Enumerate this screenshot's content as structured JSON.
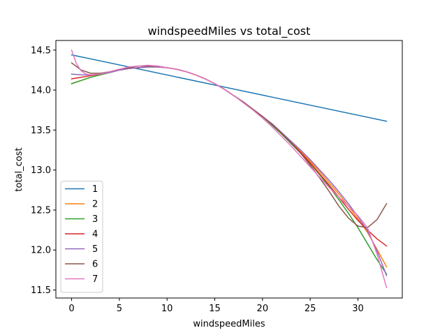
{
  "chart_data": {
    "type": "line",
    "title": "windspeedMiles vs total_cost",
    "xlabel": "windspeedMiles",
    "ylabel": "total_cost",
    "xlim": [
      -1.65,
      34.65
    ],
    "ylim": [
      11.4,
      14.62
    ],
    "xticks": [
      0,
      5,
      10,
      15,
      20,
      25,
      30
    ],
    "yticks": [
      11.5,
      12.0,
      12.5,
      13.0,
      13.5,
      14.0,
      14.5
    ],
    "ytick_labels": [
      "11.5",
      "12.0",
      "12.5",
      "13.0",
      "13.5",
      "14.0",
      "14.5"
    ],
    "grid": false,
    "legend_position": "lower-left",
    "series": [
      {
        "name": "1",
        "color": "#1f77b4",
        "x": [
          0,
          33
        ],
        "y": [
          14.44,
          13.61
        ]
      },
      {
        "name": "2",
        "color": "#ff7f0e",
        "x": [
          0,
          1,
          2,
          3,
          4,
          5,
          6,
          7,
          8,
          9,
          10,
          11,
          12,
          13,
          14,
          15,
          16,
          17,
          18,
          19,
          20,
          21,
          22,
          23,
          24,
          25,
          26,
          27,
          28,
          29,
          30,
          31,
          32,
          33
        ],
        "y": [
          14.08,
          14.12,
          14.16,
          14.19,
          14.22,
          14.25,
          14.27,
          14.28,
          14.29,
          14.29,
          14.28,
          14.26,
          14.23,
          14.19,
          14.14,
          14.08,
          14.01,
          13.93,
          13.85,
          13.76,
          13.67,
          13.57,
          13.46,
          13.35,
          13.23,
          13.11,
          12.98,
          12.84,
          12.7,
          12.55,
          12.39,
          12.22,
          12.01,
          11.79
        ]
      },
      {
        "name": "3",
        "color": "#2ca02c",
        "x": [
          0,
          1,
          2,
          3,
          4,
          5,
          6,
          7,
          8,
          9,
          10,
          11,
          12,
          13,
          14,
          15,
          16,
          17,
          18,
          19,
          20,
          21,
          22,
          23,
          24,
          25,
          26,
          27,
          28,
          29,
          30,
          31,
          32,
          33
        ],
        "y": [
          14.08,
          14.12,
          14.16,
          14.19,
          14.22,
          14.25,
          14.27,
          14.28,
          14.29,
          14.29,
          14.28,
          14.26,
          14.23,
          14.19,
          14.14,
          14.08,
          14.01,
          13.93,
          13.85,
          13.76,
          13.67,
          13.56,
          13.45,
          13.33,
          13.21,
          13.08,
          12.94,
          12.79,
          12.63,
          12.46,
          12.28,
          12.08,
          11.88,
          11.7
        ]
      },
      {
        "name": "4",
        "color": "#d62728",
        "x": [
          0,
          1,
          2,
          3,
          4,
          5,
          6,
          7,
          8,
          9,
          10,
          11,
          12,
          13,
          14,
          15,
          16,
          17,
          18,
          19,
          20,
          21,
          22,
          23,
          24,
          25,
          26,
          27,
          28,
          29,
          30,
          31,
          32,
          33
        ],
        "y": [
          14.14,
          14.16,
          14.18,
          14.2,
          14.23,
          14.25,
          14.27,
          14.28,
          14.29,
          14.29,
          14.28,
          14.26,
          14.23,
          14.19,
          14.14,
          14.08,
          14.01,
          13.93,
          13.85,
          13.76,
          13.67,
          13.57,
          13.46,
          13.34,
          13.22,
          13.09,
          12.95,
          12.81,
          12.66,
          12.51,
          12.37,
          12.25,
          12.14,
          12.05
        ]
      },
      {
        "name": "5",
        "color": "#9467bd",
        "x": [
          0,
          1,
          2,
          3,
          4,
          5,
          6,
          7,
          8,
          9,
          10,
          11,
          12,
          13,
          14,
          15,
          16,
          17,
          18,
          19,
          20,
          21,
          22,
          23,
          24,
          25,
          26,
          27,
          28,
          29,
          30,
          31,
          32,
          33
        ],
        "y": [
          14.2,
          14.19,
          14.19,
          14.2,
          14.22,
          14.25,
          14.27,
          14.28,
          14.29,
          14.29,
          14.28,
          14.26,
          14.23,
          14.19,
          14.14,
          14.08,
          14.01,
          13.93,
          13.85,
          13.76,
          13.67,
          13.58,
          13.47,
          13.36,
          13.25,
          13.13,
          13.0,
          12.87,
          12.73,
          12.58,
          12.42,
          12.24,
          11.99,
          11.68
        ]
      },
      {
        "name": "6",
        "color": "#8c564b",
        "x": [
          0,
          1,
          2,
          3,
          4,
          5,
          6,
          7,
          8,
          9,
          10,
          11,
          12,
          13,
          14,
          15,
          16,
          17,
          18,
          19,
          20,
          21,
          22,
          23,
          24,
          25,
          26,
          27,
          28,
          29,
          30,
          31,
          32,
          33
        ],
        "y": [
          14.34,
          14.25,
          14.21,
          14.21,
          14.23,
          14.26,
          14.28,
          14.3,
          14.3,
          14.3,
          14.28,
          14.26,
          14.23,
          14.19,
          14.14,
          14.08,
          14.01,
          13.93,
          13.85,
          13.76,
          13.67,
          13.57,
          13.46,
          13.34,
          13.21,
          13.06,
          12.9,
          12.73,
          12.55,
          12.4,
          12.3,
          12.28,
          12.38,
          12.58
        ]
      },
      {
        "name": "7",
        "color": "#e377c2",
        "x": [
          0,
          0.5,
          1,
          1.5,
          2,
          3,
          4,
          5,
          6,
          7,
          8,
          9,
          10,
          11,
          12,
          13,
          14,
          15,
          16,
          17,
          18,
          19,
          20,
          21,
          22,
          23,
          24,
          25,
          26,
          27,
          28,
          29,
          30,
          31,
          32,
          33
        ],
        "y": [
          14.5,
          14.33,
          14.24,
          14.2,
          14.19,
          14.2,
          14.23,
          14.26,
          14.29,
          14.3,
          14.31,
          14.3,
          14.28,
          14.26,
          14.23,
          14.19,
          14.14,
          14.08,
          14.01,
          13.93,
          13.84,
          13.75,
          13.65,
          13.54,
          13.42,
          13.3,
          13.17,
          13.04,
          12.91,
          12.78,
          12.66,
          12.55,
          12.43,
          12.28,
          11.95,
          11.53
        ]
      }
    ]
  }
}
